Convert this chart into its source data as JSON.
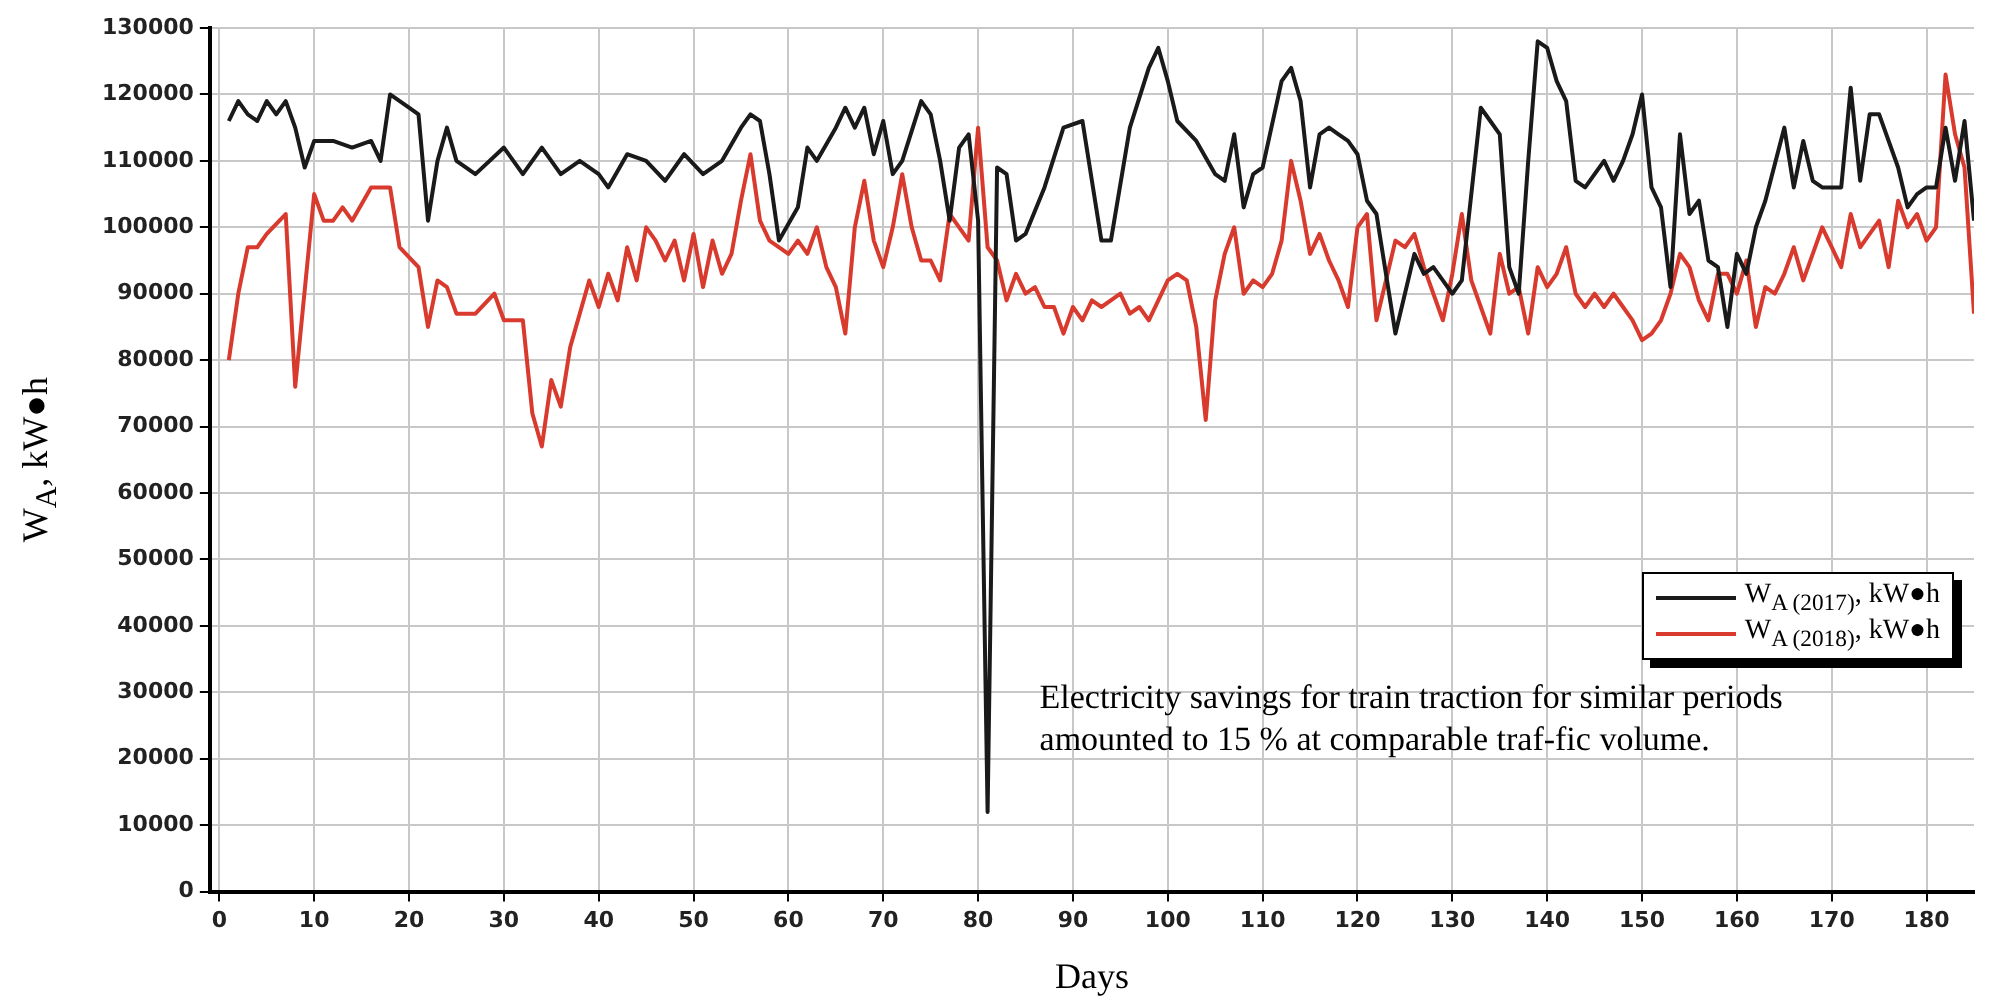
{
  "chart_data": {
    "type": "line",
    "xlabel": "Days",
    "ylabel": "W$_{A}$, kW●h",
    "xlim": [
      -1,
      185
    ],
    "xticks": [
      0,
      10,
      20,
      30,
      40,
      50,
      60,
      70,
      80,
      90,
      100,
      110,
      120,
      130,
      140,
      150,
      160,
      170,
      180
    ],
    "ylim": [
      0,
      130000
    ],
    "yticks": [
      0,
      10000,
      20000,
      30000,
      40000,
      50000,
      60000,
      70000,
      80000,
      90000,
      100000,
      110000,
      120000,
      130000
    ],
    "grid": true,
    "legend": "bottom right",
    "marker": "none",
    "line_style": "solid",
    "annotations": [
      {
        "text": "Electricity savings for train traction for similar periods amounted to 15 % at comparable traf-fic volume.",
        "x": 81,
        "y": 12000
      }
    ],
    "series": [
      {
        "name": "W$_{A (2017)}$, kW●h",
        "color": "#1a1a1a",
        "x": [
          1,
          2,
          3,
          4,
          5,
          6,
          7,
          8,
          9,
          10,
          12,
          14,
          16,
          17,
          18,
          20,
          21,
          22,
          23,
          24,
          25,
          27,
          30,
          32,
          34,
          36,
          38,
          40,
          41,
          43,
          45,
          47,
          49,
          51,
          53,
          55,
          56,
          57,
          58,
          59,
          61,
          62,
          63,
          65,
          66,
          67,
          68,
          69,
          70,
          71,
          72,
          74,
          75,
          76,
          77,
          78,
          79,
          80,
          81,
          82,
          83,
          84,
          85,
          87,
          89,
          91,
          93,
          94,
          96,
          98,
          99,
          100,
          101,
          103,
          105,
          106,
          107,
          108,
          109,
          110,
          112,
          113,
          114,
          115,
          116,
          117,
          118,
          119,
          120,
          121,
          122,
          124,
          125,
          126,
          127,
          128,
          129,
          130,
          131,
          133,
          134,
          135,
          136,
          137,
          138,
          139,
          140,
          141,
          142,
          143,
          144,
          145,
          146,
          147,
          148,
          149,
          150,
          151,
          152,
          153,
          154,
          155,
          156,
          157,
          158,
          159,
          160,
          161,
          162,
          163,
          165,
          166,
          167,
          168,
          169,
          171,
          172,
          173,
          174,
          175,
          177,
          178,
          179,
          180,
          181,
          182,
          183,
          184,
          185
        ],
        "values": [
          116000,
          119000,
          117000,
          116000,
          119000,
          117000,
          119000,
          115000,
          109000,
          113000,
          113000,
          112000,
          113000,
          110000,
          120000,
          118000,
          117000,
          101000,
          110000,
          115000,
          110000,
          108000,
          112000,
          108000,
          112000,
          108000,
          110000,
          108000,
          106000,
          111000,
          110000,
          107000,
          111000,
          108000,
          110000,
          115000,
          117000,
          116000,
          108000,
          98000,
          103000,
          112000,
          110000,
          115000,
          118000,
          115000,
          118000,
          111000,
          116000,
          108000,
          110000,
          119000,
          117000,
          110000,
          101000,
          112000,
          114000,
          101000,
          12000,
          109000,
          108000,
          98000,
          99000,
          106000,
          115000,
          116000,
          98000,
          98000,
          115000,
          124000,
          127000,
          122000,
          116000,
          113000,
          108000,
          107000,
          114000,
          103000,
          108000,
          109000,
          122000,
          124000,
          119000,
          106000,
          114000,
          115000,
          114000,
          113000,
          111000,
          104000,
          102000,
          84000,
          90000,
          96000,
          93000,
          94000,
          92000,
          90000,
          92000,
          118000,
          116000,
          114000,
          94000,
          90000,
          110000,
          128000,
          127000,
          122000,
          119000,
          107000,
          106000,
          108000,
          110000,
          107000,
          110000,
          114000,
          120000,
          106000,
          103000,
          91000,
          114000,
          102000,
          104000,
          95000,
          94000,
          85000,
          96000,
          93000,
          100000,
          104000,
          115000,
          106000,
          113000,
          107000,
          106000,
          106000,
          121000,
          107000,
          117000,
          117000,
          109000,
          103000,
          105000,
          106000,
          106000,
          115000,
          107000,
          116000,
          101000
        ]
      },
      {
        "name": "W$_{A (2018)}$, kW●h",
        "color": "#d93a2e",
        "x": [
          1,
          2,
          3,
          4,
          5,
          7,
          8,
          10,
          11,
          12,
          13,
          14,
          16,
          18,
          19,
          21,
          22,
          23,
          24,
          25,
          27,
          29,
          30,
          32,
          33,
          34,
          35,
          36,
          37,
          39,
          40,
          41,
          42,
          43,
          44,
          45,
          46,
          47,
          48,
          49,
          50,
          51,
          52,
          53,
          54,
          55,
          56,
          57,
          58,
          60,
          61,
          62,
          63,
          64,
          65,
          66,
          67,
          68,
          69,
          70,
          71,
          72,
          73,
          74,
          75,
          76,
          77,
          78,
          79,
          80,
          81,
          82,
          83,
          84,
          85,
          86,
          87,
          88,
          89,
          90,
          91,
          92,
          93,
          95,
          96,
          97,
          98,
          100,
          101,
          102,
          103,
          104,
          105,
          106,
          107,
          108,
          109,
          110,
          111,
          112,
          113,
          114,
          115,
          116,
          117,
          118,
          119,
          120,
          121,
          122,
          123,
          124,
          125,
          126,
          127,
          128,
          129,
          130,
          131,
          132,
          133,
          134,
          135,
          136,
          137,
          138,
          139,
          140,
          141,
          142,
          143,
          144,
          145,
          146,
          147,
          148,
          149,
          150,
          151,
          152,
          153,
          154,
          155,
          156,
          157,
          158,
          159,
          160,
          161,
          162,
          163,
          164,
          165,
          166,
          167,
          168,
          169,
          170,
          171,
          172,
          173,
          174,
          175,
          176,
          177,
          178,
          179,
          180,
          181,
          182,
          183,
          184,
          185
        ],
        "values": [
          80000,
          90000,
          97000,
          97000,
          99000,
          102000,
          76000,
          105000,
          101000,
          101000,
          103000,
          101000,
          106000,
          106000,
          97000,
          94000,
          85000,
          92000,
          91000,
          87000,
          87000,
          90000,
          86000,
          86000,
          72000,
          67000,
          77000,
          73000,
          82000,
          92000,
          88000,
          93000,
          89000,
          97000,
          92000,
          100000,
          98000,
          95000,
          98000,
          92000,
          99000,
          91000,
          98000,
          93000,
          96000,
          104000,
          111000,
          101000,
          98000,
          96000,
          98000,
          96000,
          100000,
          94000,
          91000,
          84000,
          100000,
          107000,
          98000,
          94000,
          100000,
          108000,
          100000,
          95000,
          95000,
          92000,
          102000,
          100000,
          98000,
          115000,
          97000,
          95000,
          89000,
          93000,
          90000,
          91000,
          88000,
          88000,
          84000,
          88000,
          86000,
          89000,
          88000,
          90000,
          87000,
          88000,
          86000,
          92000,
          93000,
          92000,
          85000,
          71000,
          89000,
          96000,
          100000,
          90000,
          92000,
          91000,
          93000,
          98000,
          110000,
          104000,
          96000,
          99000,
          95000,
          92000,
          88000,
          100000,
          102000,
          86000,
          92000,
          98000,
          97000,
          99000,
          94000,
          90000,
          86000,
          93000,
          102000,
          92000,
          88000,
          84000,
          96000,
          90000,
          91000,
          84000,
          94000,
          91000,
          93000,
          97000,
          90000,
          88000,
          90000,
          88000,
          90000,
          88000,
          86000,
          83000,
          84000,
          86000,
          90000,
          96000,
          94000,
          89000,
          86000,
          93000,
          93000,
          90000,
          95000,
          85000,
          91000,
          90000,
          93000,
          97000,
          92000,
          96000,
          100000,
          97000,
          94000,
          102000,
          97000,
          99000,
          101000,
          94000,
          104000,
          100000,
          102000,
          98000,
          100000,
          123000,
          114000,
          109000,
          87000
        ]
      }
    ]
  }
}
